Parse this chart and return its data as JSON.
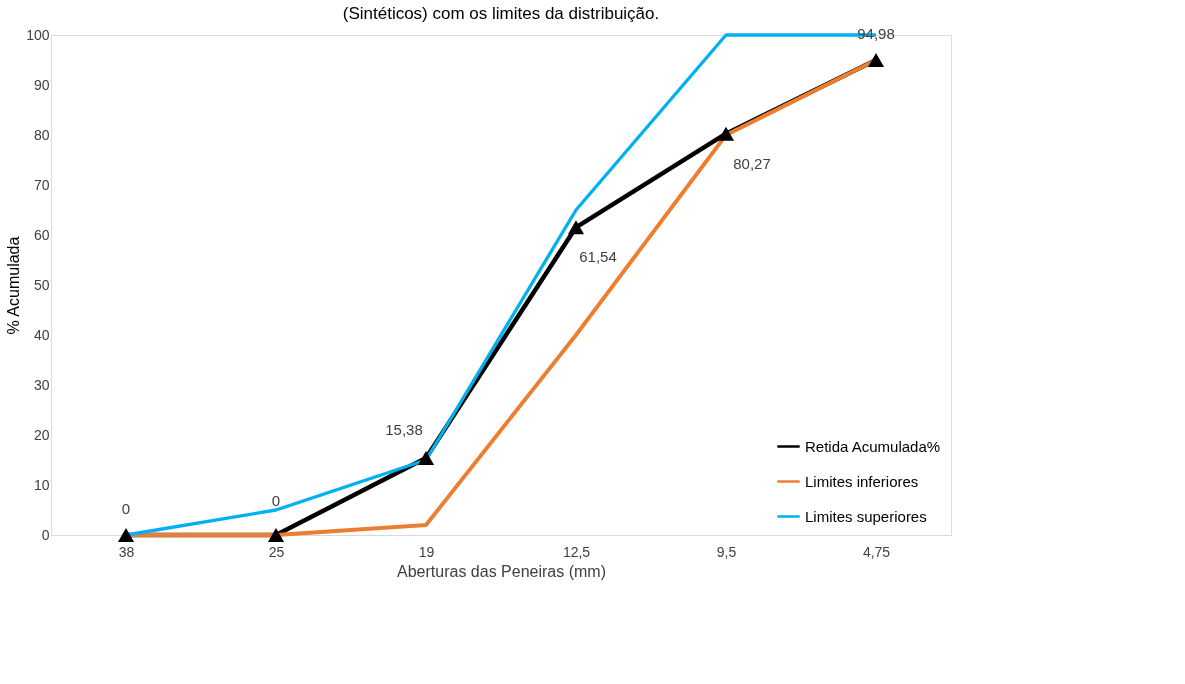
{
  "chart_data": {
    "type": "line",
    "title": "(Sintéticos) com os limites da distribuição.",
    "xlabel": "Aberturas das Peneiras (mm)",
    "ylabel": "% Acumulada",
    "categories": [
      "38",
      "25",
      "19",
      "12,5",
      "9,5",
      "4,75"
    ],
    "series": [
      {
        "name": "Retida Acumulada%",
        "color": "#000000",
        "values": [
          0,
          0,
          15.38,
          61.54,
          80.27,
          94.98
        ],
        "marker": "triangle",
        "value_labels": [
          "0",
          "0",
          "15,38",
          "61,54",
          "80,27",
          "94,98"
        ]
      },
      {
        "name": "Limites inferiores",
        "color": "#ed7d31",
        "values": [
          0,
          0,
          2,
          40,
          80,
          95
        ],
        "marker": "none"
      },
      {
        "name": "Limites superiores",
        "color": "#00b0f0",
        "values": [
          0,
          5,
          15,
          65,
          100,
          100
        ],
        "marker": "none"
      }
    ],
    "ylim": [
      0,
      100
    ],
    "yticks": [
      0,
      10,
      20,
      30,
      40,
      50,
      60,
      70,
      80,
      90,
      100
    ],
    "grid": false,
    "legend": "bottom right",
    "line_style": "solid"
  }
}
